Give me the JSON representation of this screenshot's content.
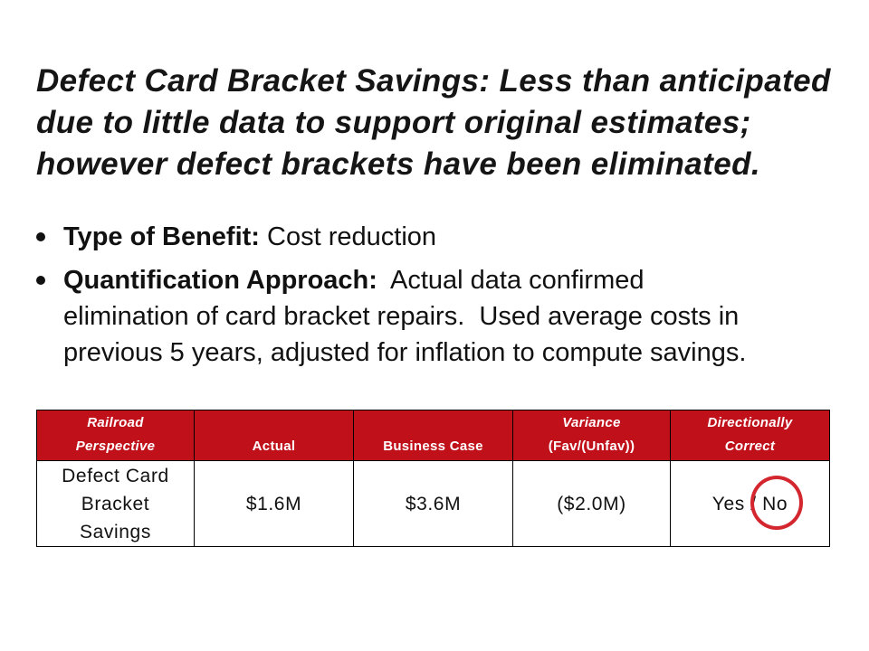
{
  "slide": {
    "title_lines": [
      "Defect Card Bracket Savings: Less than anticipated",
      "due to little data to support original estimates;",
      "however defect brackets have been eliminated."
    ],
    "bullets": [
      {
        "label": "Type of Benefit:",
        "text": "Cost reduction"
      },
      {
        "label": "Quantification Approach:",
        "lines": [
          "Actual data confirmed",
          "elimination of card bracket repairs.  Used average costs in",
          "previous 5 years, adjusted for inflation to compute savings."
        ]
      }
    ]
  },
  "table": {
    "headers": [
      {
        "lines": [
          "Railroad",
          "Perspective"
        ]
      },
      {
        "lines": [
          "Actual"
        ]
      },
      {
        "lines": [
          "Business Case"
        ]
      },
      {
        "lines": [
          "Variance",
          "(Fav/(Unfav))"
        ]
      },
      {
        "lines": [
          "Directionally",
          "Correct"
        ]
      }
    ],
    "row": {
      "perspective_lines": [
        "Defect Card",
        "Bracket",
        "Savings"
      ],
      "actual": "$1.6M",
      "business_case": "$3.6M",
      "variance": "($2.0M)",
      "directionally_correct": {
        "yes": "Yes",
        "separator": "/",
        "no": "No",
        "no_circled": true
      }
    }
  },
  "colors": {
    "header_bg": "#c0111b",
    "annotation": "#d3262e",
    "title": "#151515",
    "text": "#111111"
  }
}
